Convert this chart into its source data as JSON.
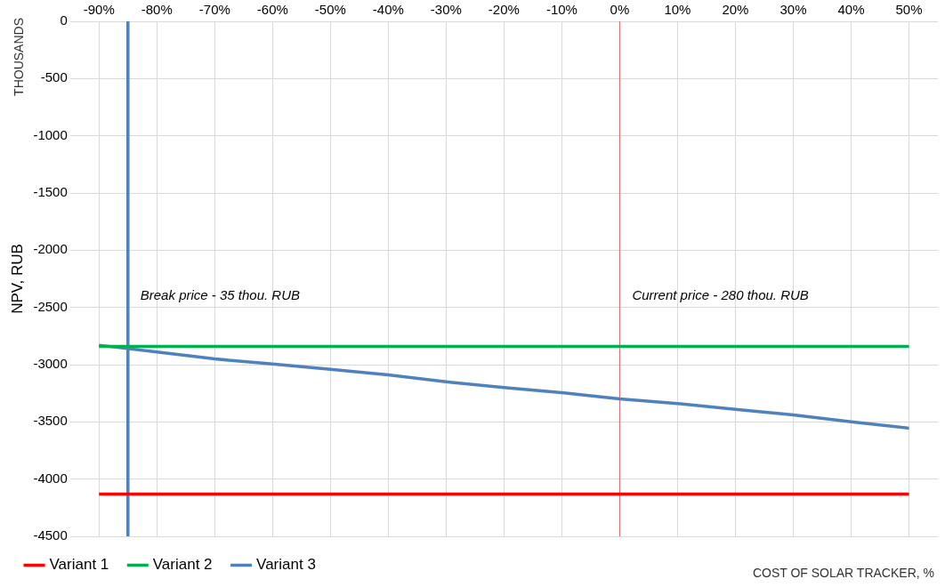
{
  "chart_data": {
    "type": "line",
    "xlabel": "COST OF SOLAR TRACKER, %",
    "ylabel": "NPV, RUB",
    "annotations": [
      "THOUSANDS"
    ],
    "x": [
      -90,
      -80,
      -70,
      -60,
      -50,
      -40,
      -30,
      -20,
      -10,
      0,
      10,
      20,
      30,
      40,
      50
    ],
    "series": [
      {
        "name": "Variant 1",
        "color": "#ff0000",
        "values": [
          -4130,
          -4130,
          -4130,
          -4130,
          -4130,
          -4130,
          -4130,
          -4130,
          -4130,
          -4130,
          -4130,
          -4130,
          -4130,
          -4130,
          -4130
        ]
      },
      {
        "name": "Variant 2",
        "color": "#00b050",
        "values": [
          -2840,
          -2840,
          -2840,
          -2840,
          -2840,
          -2840,
          -2840,
          -2840,
          -2840,
          -2840,
          -2840,
          -2840,
          -2840,
          -2840,
          -2840
        ]
      },
      {
        "name": "Variant 3",
        "color": "#4f81bd",
        "values": [
          -2830,
          -2890,
          -2950,
          -2995,
          -3040,
          -3090,
          -3150,
          -3200,
          -3245,
          -3300,
          -3340,
          -3390,
          -3440,
          -3500,
          -3555
        ]
      }
    ],
    "ref_lines": [
      {
        "axis": "x",
        "value": -85,
        "label": "Break price - 35 thou. RUB",
        "color": "#4f81bd"
      },
      {
        "axis": "x",
        "value": 0,
        "label": "Current price - 280 thou. RUB",
        "color": "#e06666"
      }
    ],
    "xlim": [
      -95,
      55
    ],
    "xticks": [
      {
        "value": -90,
        "label": "-90%"
      },
      {
        "value": -80,
        "label": "-80%"
      },
      {
        "value": -70,
        "label": "-70%"
      },
      {
        "value": -60,
        "label": "-60%"
      },
      {
        "value": -50,
        "label": "-50%"
      },
      {
        "value": -40,
        "label": "-40%"
      },
      {
        "value": -30,
        "label": "-30%"
      },
      {
        "value": -20,
        "label": "-20%"
      },
      {
        "value": -10,
        "label": "-10%"
      },
      {
        "value": 0,
        "label": "0%"
      },
      {
        "value": 10,
        "label": "10%"
      },
      {
        "value": 20,
        "label": "20%"
      },
      {
        "value": 30,
        "label": "30%"
      },
      {
        "value": 40,
        "label": "40%"
      },
      {
        "value": 50,
        "label": "50%"
      }
    ],
    "ylim": [
      -4500,
      0
    ],
    "yticks": [
      -4500,
      -4000,
      -3500,
      -3000,
      -2500,
      -2000,
      -1500,
      -1000,
      -500,
      0
    ],
    "grid": true,
    "legend": "bottom left",
    "marker": "none",
    "line_style": "solid"
  }
}
